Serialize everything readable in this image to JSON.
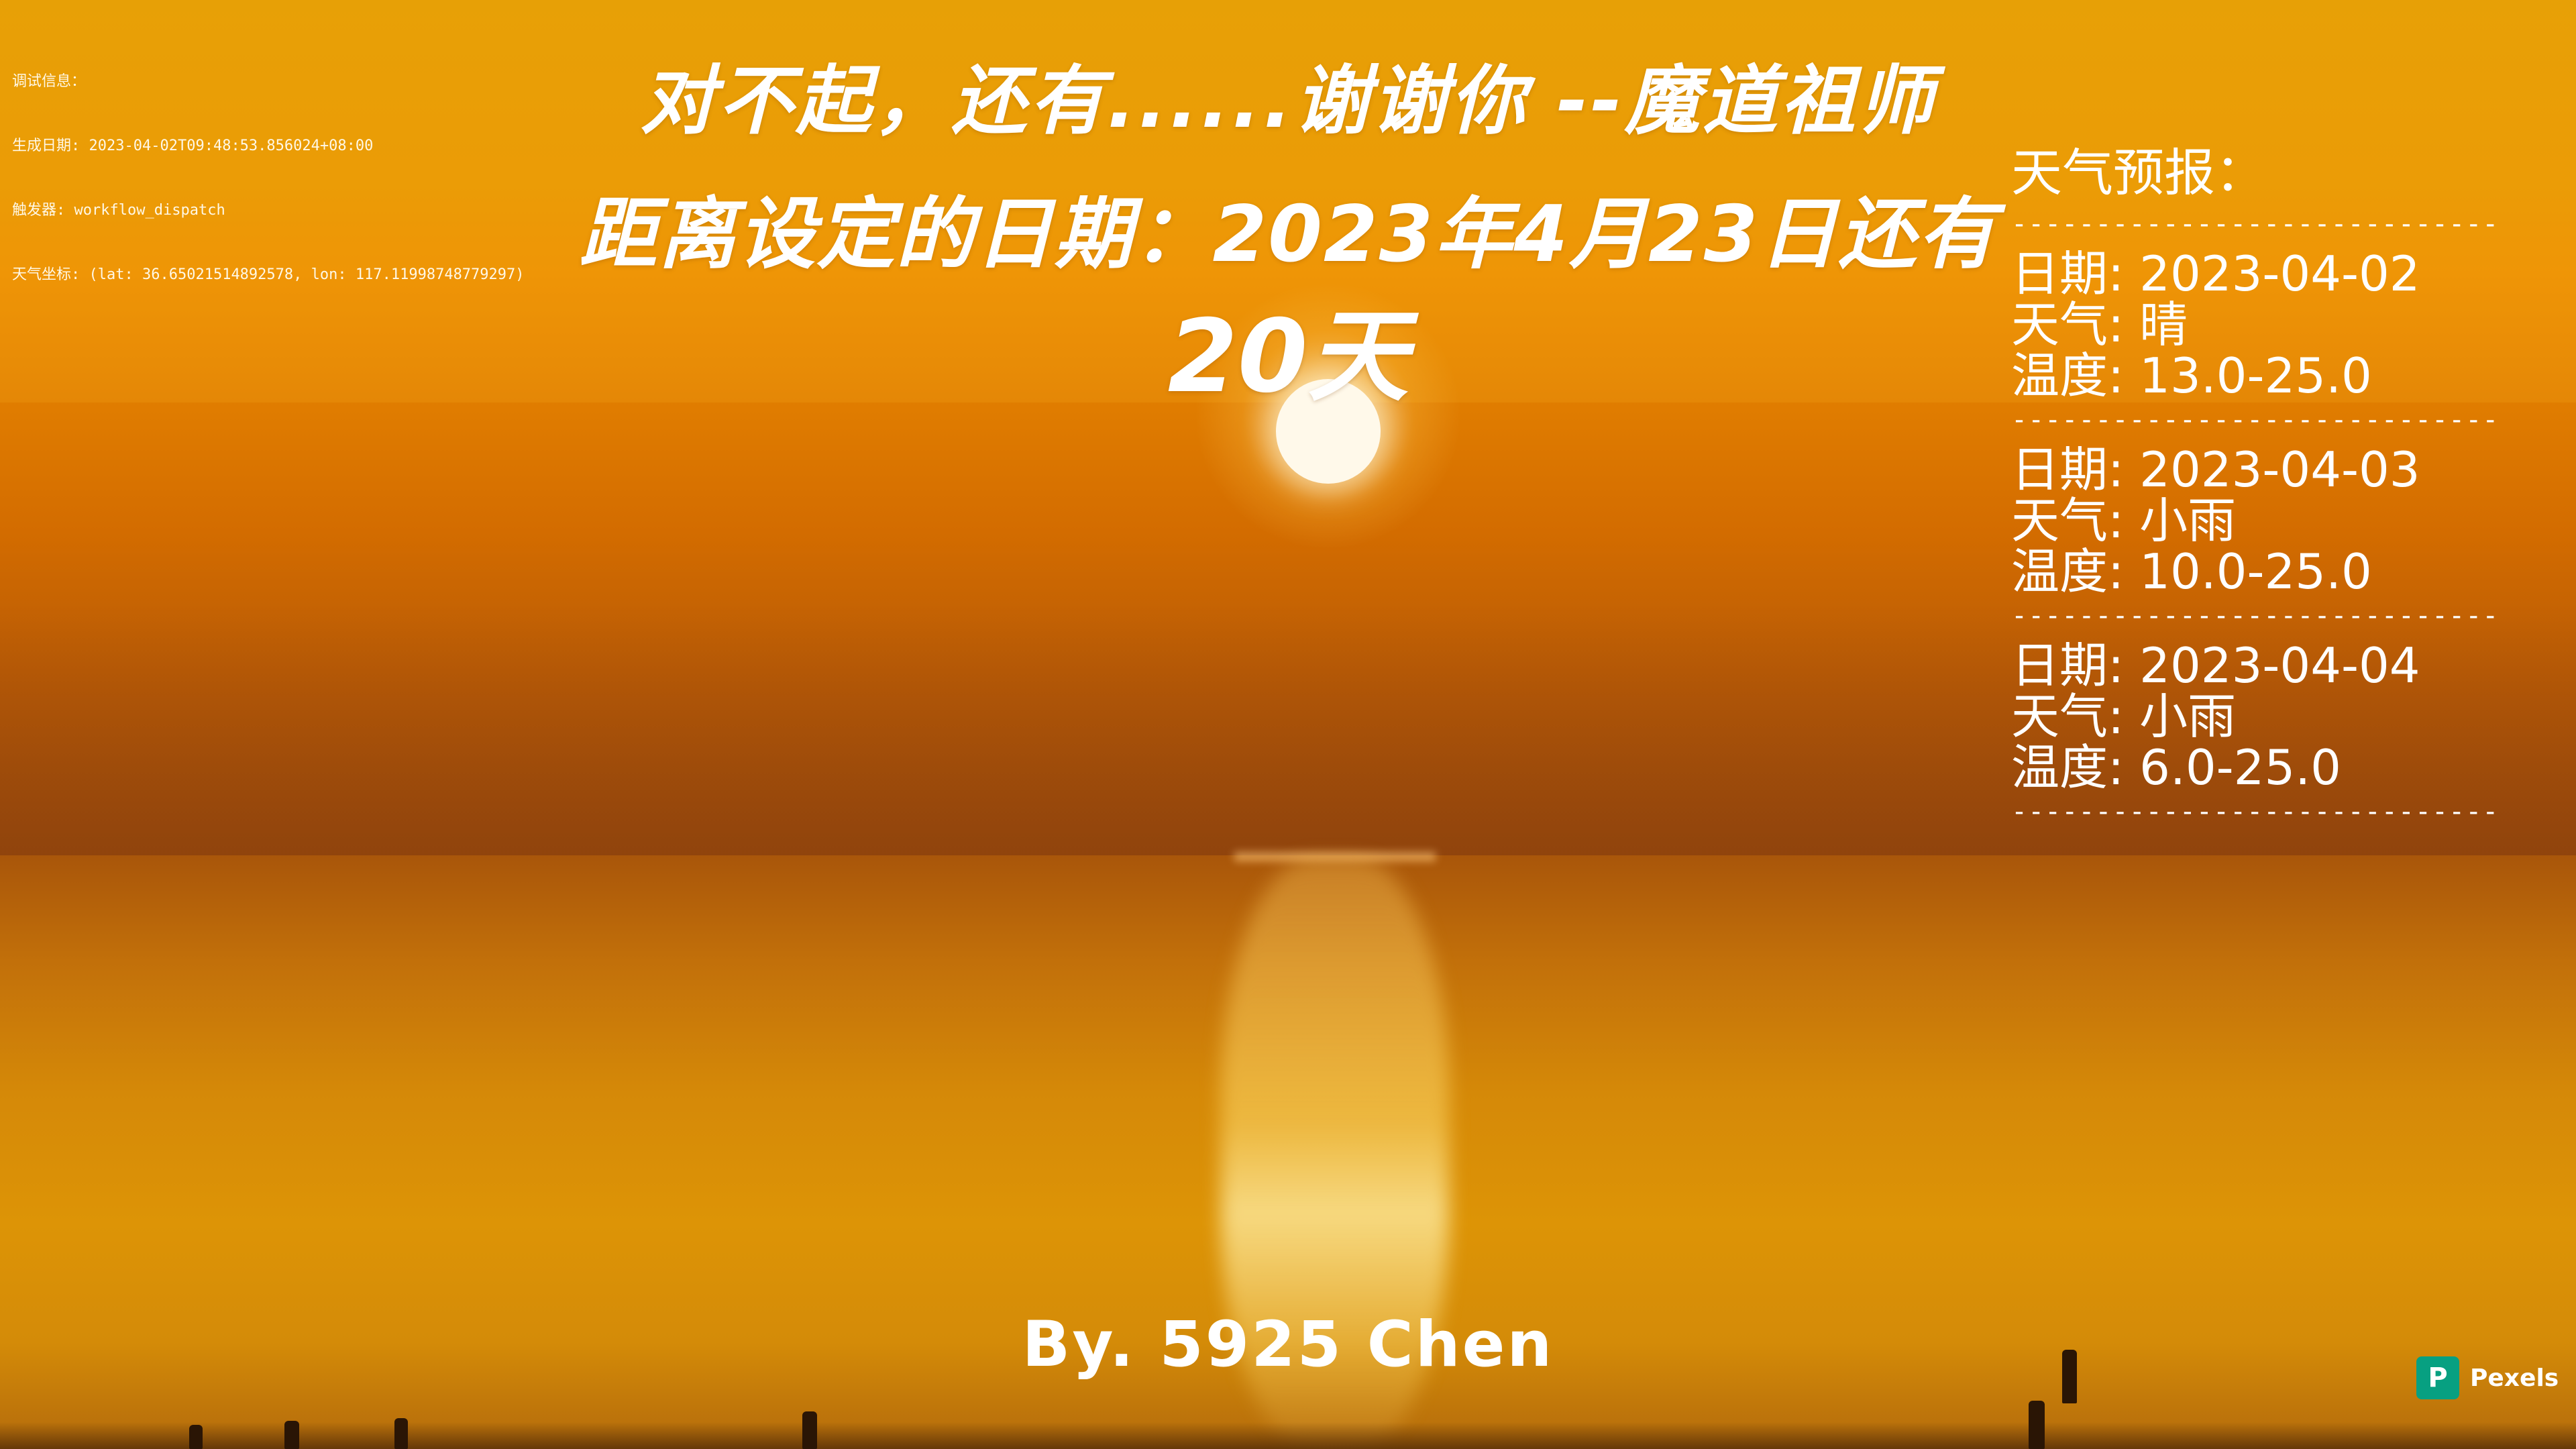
{
  "debug": {
    "heading": "调试信息：",
    "generated_label": "生成日期",
    "generated_value": "2023-04-02T09:48:53.856024+08:00",
    "trigger_label": "触发器",
    "trigger_value": "workflow_dispatch",
    "coords_label": "天气坐标",
    "coords_value": "(lat: 36.6502151489257​8, lon: 117.11998748779297)"
  },
  "quote": "对不起，还有......谢谢你   --魔道祖师",
  "countdown": {
    "prefix": "距离设定的日期：2023年4月23日还有",
    "days": "20天"
  },
  "weather": {
    "title": "天气预报：",
    "separator": "--------------------------------",
    "date_label": "日期",
    "weather_label": "天气",
    "temp_label": "温度",
    "days": [
      {
        "date": "2023-04-02",
        "condition": "晴",
        "temp": "13.0-25.0"
      },
      {
        "date": "2023-04-03",
        "condition": "小雨",
        "temp": "10.0-25.0"
      },
      {
        "date": "2023-04-04",
        "condition": "小雨",
        "temp": "6.0-25.0"
      }
    ]
  },
  "author": "By. 5925 Chen",
  "watermark": {
    "icon": "pexels-logo-icon",
    "logo_letter": "P",
    "name": "Pexels",
    "color": "#07a081"
  }
}
